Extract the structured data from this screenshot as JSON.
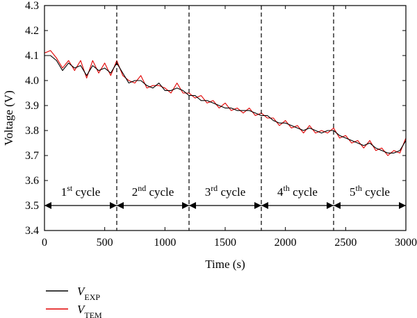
{
  "chart_data": {
    "type": "line",
    "xlabel": "Time (s)",
    "ylabel": "Voltage (V)",
    "xlim": [
      0,
      3000
    ],
    "ylim": [
      3.4,
      4.3
    ],
    "xticks": [
      0,
      500,
      1000,
      1500,
      2000,
      2500,
      3000
    ],
    "yticks": [
      3.4,
      3.5,
      3.6,
      3.7,
      3.8,
      3.9,
      4.0,
      4.1,
      4.2,
      4.3
    ],
    "grid": false,
    "legend_position": "bottom-left",
    "cycle_boundaries": [
      600,
      1200,
      1800,
      2400
    ],
    "cycle_arrow_voltage": 3.5,
    "cycles": [
      {
        "start": 0,
        "end": 600,
        "num": "1",
        "sup": "st",
        "text": " cycle"
      },
      {
        "start": 600,
        "end": 1200,
        "num": "2",
        "sup": "nd",
        "text": " cycle"
      },
      {
        "start": 1200,
        "end": 1800,
        "num": "3",
        "sup": "rd",
        "text": " cycle"
      },
      {
        "start": 1800,
        "end": 2400,
        "num": "4",
        "sup": "th",
        "text": " cycle"
      },
      {
        "start": 2400,
        "end": 3000,
        "num": "5",
        "sup": "th",
        "text": " cycle"
      }
    ],
    "series": [
      {
        "name": "V_EXP",
        "label_main": "V",
        "label_sub": "EXP",
        "color": "#000000",
        "x": [
          0,
          50,
          100,
          150,
          200,
          250,
          300,
          350,
          400,
          450,
          500,
          550,
          600,
          650,
          700,
          750,
          800,
          850,
          900,
          950,
          1000,
          1050,
          1100,
          1150,
          1200,
          1250,
          1300,
          1350,
          1400,
          1450,
          1500,
          1550,
          1600,
          1650,
          1700,
          1750,
          1800,
          1850,
          1900,
          1950,
          2000,
          2050,
          2100,
          2150,
          2200,
          2250,
          2300,
          2350,
          2400,
          2450,
          2500,
          2550,
          2600,
          2650,
          2700,
          2750,
          2800,
          2850,
          2900,
          2950,
          3000
        ],
        "values": [
          4.1,
          4.1,
          4.08,
          4.04,
          4.07,
          4.05,
          4.06,
          4.02,
          4.06,
          4.04,
          4.05,
          4.03,
          4.07,
          4.03,
          3.99,
          4.0,
          4.0,
          3.98,
          3.97,
          3.99,
          3.96,
          3.96,
          3.97,
          3.96,
          3.94,
          3.94,
          3.92,
          3.92,
          3.91,
          3.9,
          3.89,
          3.89,
          3.88,
          3.88,
          3.88,
          3.87,
          3.86,
          3.86,
          3.84,
          3.83,
          3.83,
          3.82,
          3.81,
          3.8,
          3.81,
          3.8,
          3.79,
          3.8,
          3.8,
          3.78,
          3.77,
          3.76,
          3.75,
          3.74,
          3.75,
          3.73,
          3.72,
          3.71,
          3.71,
          3.72,
          3.76
        ]
      },
      {
        "name": "V_TEM",
        "label_main": "V",
        "label_sub": "TEM",
        "color": "#e00000",
        "x": [
          0,
          50,
          100,
          150,
          200,
          250,
          300,
          350,
          400,
          450,
          500,
          550,
          600,
          650,
          700,
          750,
          800,
          850,
          900,
          950,
          1000,
          1050,
          1100,
          1150,
          1200,
          1250,
          1300,
          1350,
          1400,
          1450,
          1500,
          1550,
          1600,
          1650,
          1700,
          1750,
          1800,
          1850,
          1900,
          1950,
          2000,
          2050,
          2100,
          2150,
          2200,
          2250,
          2300,
          2350,
          2400,
          2450,
          2500,
          2550,
          2600,
          2650,
          2700,
          2750,
          2800,
          2850,
          2900,
          2950,
          3000
        ],
        "values": [
          4.11,
          4.12,
          4.09,
          4.05,
          4.08,
          4.04,
          4.08,
          4.01,
          4.08,
          4.03,
          4.07,
          4.02,
          4.08,
          4.02,
          4.0,
          3.99,
          4.02,
          3.97,
          3.98,
          3.98,
          3.97,
          3.95,
          3.99,
          3.95,
          3.95,
          3.93,
          3.94,
          3.91,
          3.92,
          3.89,
          3.91,
          3.88,
          3.89,
          3.87,
          3.89,
          3.86,
          3.87,
          3.85,
          3.85,
          3.82,
          3.84,
          3.81,
          3.82,
          3.79,
          3.82,
          3.79,
          3.8,
          3.79,
          3.81,
          3.77,
          3.78,
          3.75,
          3.76,
          3.73,
          3.76,
          3.72,
          3.73,
          3.7,
          3.72,
          3.71,
          3.77
        ]
      }
    ]
  }
}
